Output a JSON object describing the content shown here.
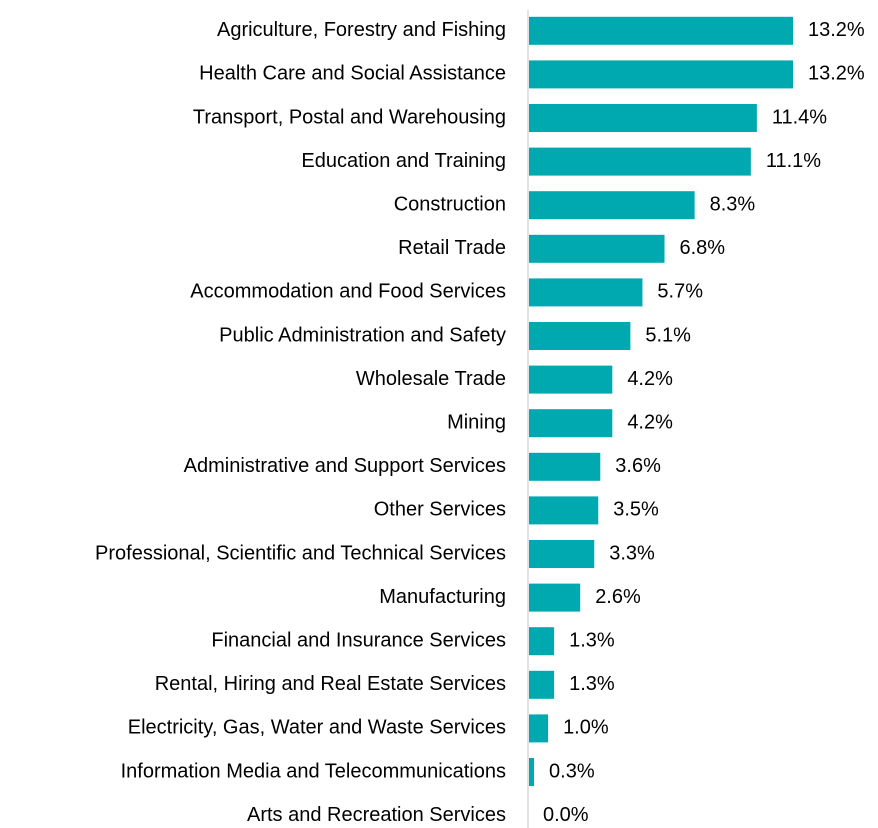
{
  "chart_data": {
    "type": "bar",
    "orientation": "horizontal",
    "color": "#00a9b0",
    "categories": [
      "Agriculture, Forestry and Fishing",
      "Health Care and Social Assistance",
      "Transport, Postal and Warehousing",
      "Education and Training",
      "Construction",
      "Retail Trade",
      "Accommodation and Food Services",
      "Public Administration and Safety",
      "Wholesale Trade",
      "Mining",
      "Administrative and Support Services",
      "Other Services",
      "Professional, Scientific and Technical Services",
      "Manufacturing",
      "Financial and Insurance Services",
      "Rental, Hiring and Real Estate Services",
      "Electricity, Gas, Water and Waste Services",
      "Information Media and Telecommunications",
      "Arts and Recreation Services"
    ],
    "values": [
      13.2,
      13.2,
      11.4,
      11.1,
      8.3,
      6.8,
      5.7,
      5.1,
      4.2,
      4.2,
      3.6,
      3.5,
      3.3,
      2.6,
      1.3,
      1.3,
      1.0,
      0.3,
      0.0
    ],
    "value_labels": [
      "13.2%",
      "13.2%",
      "11.4%",
      "11.1%",
      "8.3%",
      "6.8%",
      "5.7%",
      "5.1%",
      "4.2%",
      "4.2%",
      "3.6%",
      "3.5%",
      "3.3%",
      "2.6%",
      "1.3%",
      "1.3%",
      "1.0%",
      "0.3%",
      "0.0%"
    ]
  }
}
